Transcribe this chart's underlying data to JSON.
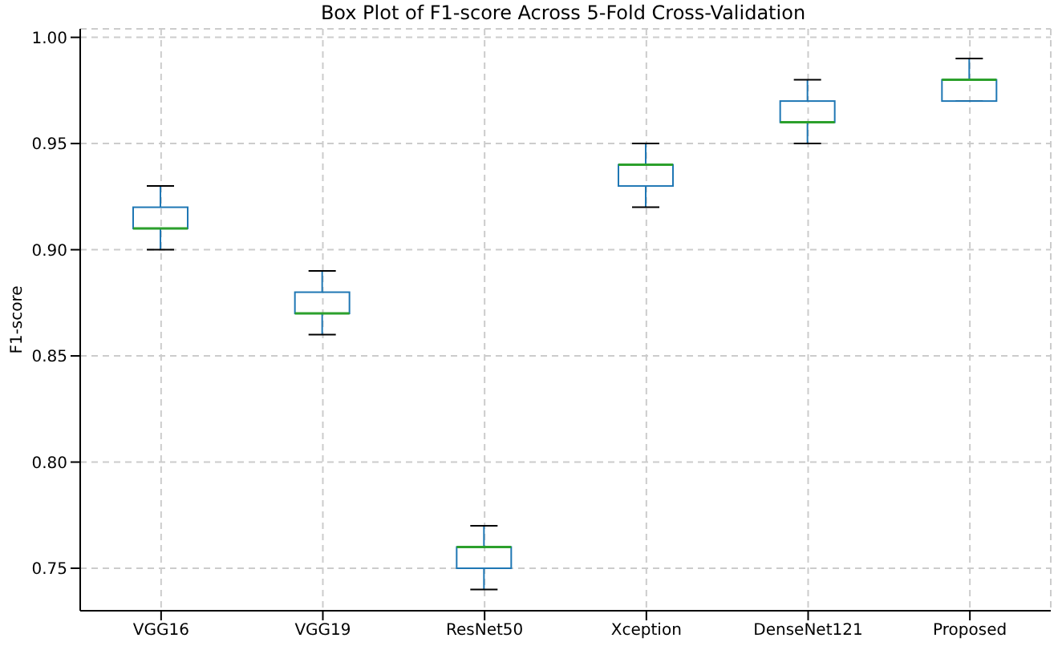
{
  "chart_data": {
    "type": "box",
    "title": "Box Plot of F1-score Across 5-Fold Cross-Validation",
    "ylabel": "F1-score",
    "categories": [
      "VGG16",
      "VGG19",
      "ResNet50",
      "Xception",
      "DenseNet121",
      "Proposed"
    ],
    "boxes": [
      {
        "low": 0.9,
        "q1": 0.91,
        "median": 0.91,
        "q3": 0.92,
        "high": 0.93
      },
      {
        "low": 0.86,
        "q1": 0.87,
        "median": 0.87,
        "q3": 0.88,
        "high": 0.89
      },
      {
        "low": 0.74,
        "q1": 0.75,
        "median": 0.76,
        "q3": 0.76,
        "high": 0.77
      },
      {
        "low": 0.92,
        "q1": 0.93,
        "median": 0.94,
        "q3": 0.94,
        "high": 0.95
      },
      {
        "low": 0.95,
        "q1": 0.96,
        "median": 0.96,
        "q3": 0.97,
        "high": 0.98
      },
      {
        "low": 0.97,
        "q1": 0.97,
        "median": 0.98,
        "q3": 0.98,
        "high": 0.99
      }
    ],
    "color": "#1f77b4",
    "ylim": [
      0.73,
      1.004
    ],
    "yticks": [
      {
        "value": 0.75,
        "label": "0.75"
      },
      {
        "value": 0.8,
        "label": "0.80"
      },
      {
        "value": 0.85,
        "label": "0.85"
      },
      {
        "value": 0.9,
        "label": "0.90"
      },
      {
        "value": 0.95,
        "label": "0.95"
      },
      {
        "value": 1.0,
        "label": "1.00"
      }
    ],
    "grid": true
  }
}
